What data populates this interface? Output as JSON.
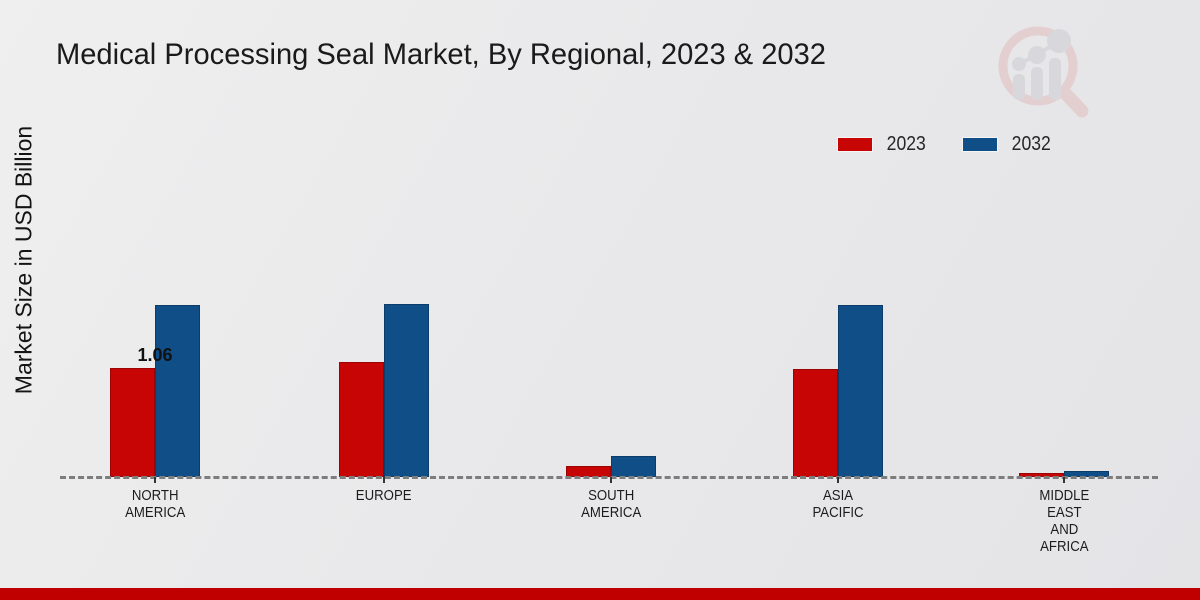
{
  "page": {
    "background_color": "#e9e9eb",
    "accent_bar_color": "#c00000"
  },
  "icons": {
    "watermark": "magnifier-growth-chart-logo"
  },
  "chart_data": {
    "type": "bar",
    "title": "Medical Processing Seal Market, By Regional, 2023 & 2032",
    "xlabel": "",
    "ylabel": "Market Size in USD Billion",
    "ylim": [
      0,
      2
    ],
    "grid": false,
    "legend_position": "top-right",
    "baseline_style": "dashed",
    "categories": [
      "NORTH AMERICA",
      "EUROPE",
      "SOUTH AMERICA",
      "ASIA PACIFIC",
      "MIDDLE EAST AND AFRICA"
    ],
    "category_lines": [
      [
        "NORTH",
        "AMERICA"
      ],
      [
        "EUROPE"
      ],
      [
        "SOUTH",
        "AMERICA"
      ],
      [
        "ASIA",
        "PACIFIC"
      ],
      [
        "MIDDLE",
        "EAST",
        "AND",
        "AFRICA"
      ]
    ],
    "series": [
      {
        "name": "2023",
        "color": "#c80505",
        "values": [
          1.06,
          1.12,
          0.11,
          1.05,
          0.04
        ],
        "labels": [
          "1.06",
          "",
          "",
          "",
          ""
        ]
      },
      {
        "name": "2032",
        "color": "#104e87",
        "values": [
          1.67,
          1.68,
          0.2,
          1.67,
          0.06
        ],
        "labels": [
          "",
          "",
          "",
          "",
          ""
        ]
      }
    ]
  }
}
